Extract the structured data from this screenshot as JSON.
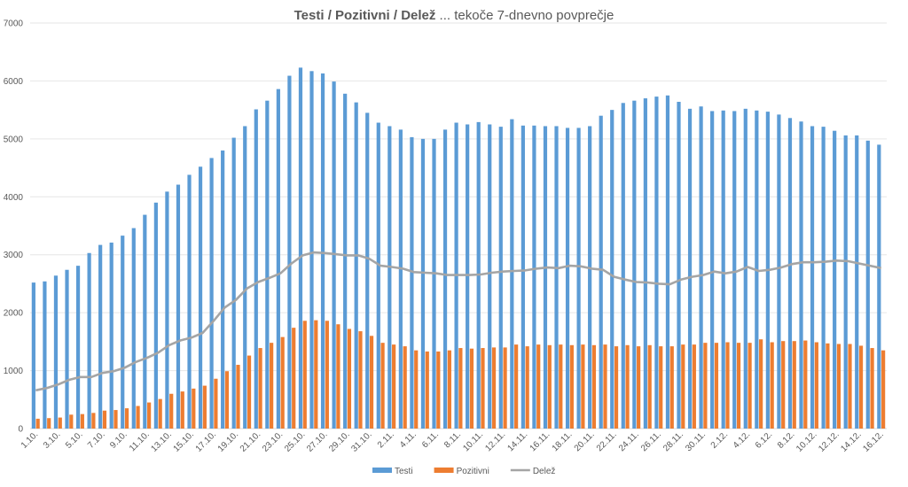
{
  "chart_data": {
    "type": "bar",
    "title_bold": "Testi / Pozitivni / Delež",
    "title_rest": " ... tekoče 7-dnevno povprečje",
    "xlabel": "",
    "ylabel": "",
    "ylim": [
      0,
      7000
    ],
    "yticks": [
      "0",
      "1000",
      "2000",
      "3000",
      "4000",
      "5000",
      "6000",
      "7000"
    ],
    "grid": true,
    "legend_position": "bottom",
    "categories": [
      "1.10.",
      "2.10.",
      "3.10.",
      "4.10.",
      "5.10.",
      "6.10.",
      "7.10.",
      "8.10.",
      "9.10.",
      "10.10.",
      "11.10.",
      "12.10.",
      "13.10.",
      "14.10.",
      "15.10.",
      "16.10.",
      "17.10.",
      "18.10.",
      "19.10.",
      "20.10.",
      "21.10.",
      "22.10.",
      "23.10.",
      "24.10.",
      "25.10.",
      "26.10.",
      "27.10.",
      "28.10.",
      "29.10.",
      "30.10.",
      "31.10.",
      "1.11.",
      "2.11.",
      "3.11.",
      "4.11.",
      "5.11.",
      "6.11.",
      "7.11.",
      "8.11.",
      "9.11.",
      "10.11.",
      "11.11.",
      "12.11.",
      "13.11.",
      "14.11.",
      "15.11.",
      "16.11.",
      "17.11.",
      "18.11.",
      "19.11.",
      "20.11.",
      "21.11.",
      "22.11.",
      "23.11.",
      "24.11.",
      "25.11.",
      "26.11.",
      "27.11.",
      "28.11.",
      "29.11.",
      "30.11.",
      "1.12.",
      "2.12.",
      "3.12.",
      "4.12.",
      "5.12.",
      "6.12.",
      "7.12.",
      "8.12.",
      "9.12.",
      "10.12.",
      "11.12.",
      "12.12.",
      "13.12.",
      "14.12.",
      "15.12.",
      "16.12."
    ],
    "series": [
      {
        "name": "Testi",
        "kind": "bar",
        "color": "#5B9BD5",
        "values": [
          2520,
          2540,
          2640,
          2740,
          2810,
          3030,
          3170,
          3210,
          3330,
          3460,
          3690,
          3900,
          4090,
          4210,
          4380,
          4520,
          4670,
          4800,
          5020,
          5220,
          5510,
          5660,
          5860,
          6090,
          6230,
          6170,
          6130,
          5990,
          5780,
          5630,
          5450,
          5280,
          5220,
          5160,
          5030,
          5000,
          5000,
          5160,
          5280,
          5250,
          5290,
          5250,
          5210,
          5340,
          5230,
          5230,
          5220,
          5220,
          5190,
          5190,
          5220,
          5400,
          5500,
          5620,
          5660,
          5700,
          5730,
          5750,
          5640,
          5520,
          5560,
          5480,
          5490,
          5480,
          5520,
          5490,
          5470,
          5420,
          5360,
          5300,
          5220,
          5210,
          5140,
          5060,
          5060,
          4970,
          4900
        ]
      },
      {
        "name": "Pozitivni",
        "kind": "bar",
        "color": "#ED7D31",
        "values": [
          170,
          180,
          190,
          240,
          250,
          270,
          310,
          320,
          350,
          390,
          450,
          510,
          600,
          640,
          690,
          740,
          860,
          990,
          1100,
          1260,
          1390,
          1480,
          1580,
          1740,
          1860,
          1870,
          1860,
          1800,
          1720,
          1680,
          1600,
          1480,
          1450,
          1420,
          1350,
          1330,
          1330,
          1350,
          1390,
          1380,
          1390,
          1400,
          1400,
          1450,
          1420,
          1450,
          1440,
          1450,
          1440,
          1450,
          1440,
          1450,
          1420,
          1440,
          1420,
          1440,
          1420,
          1420,
          1450,
          1450,
          1480,
          1480,
          1490,
          1480,
          1480,
          1540,
          1490,
          1510,
          1510,
          1520,
          1490,
          1470,
          1460,
          1460,
          1430,
          1390,
          1350
        ]
      },
      {
        "name": "Delež",
        "kind": "line",
        "color": "#A5A5A5",
        "values": [
          660,
          700,
          760,
          840,
          890,
          890,
          960,
          990,
          1050,
          1150,
          1220,
          1310,
          1440,
          1520,
          1570,
          1650,
          1860,
          2090,
          2220,
          2420,
          2530,
          2600,
          2680,
          2850,
          2990,
          3040,
          3030,
          3010,
          2990,
          2990,
          2930,
          2810,
          2790,
          2760,
          2700,
          2690,
          2680,
          2650,
          2650,
          2650,
          2660,
          2690,
          2710,
          2720,
          2730,
          2760,
          2780,
          2770,
          2810,
          2800,
          2760,
          2740,
          2620,
          2570,
          2530,
          2520,
          2500,
          2490,
          2570,
          2620,
          2650,
          2710,
          2680,
          2710,
          2790,
          2720,
          2740,
          2780,
          2840,
          2870,
          2870,
          2880,
          2900,
          2890,
          2850,
          2810,
          2770
        ]
      }
    ]
  }
}
